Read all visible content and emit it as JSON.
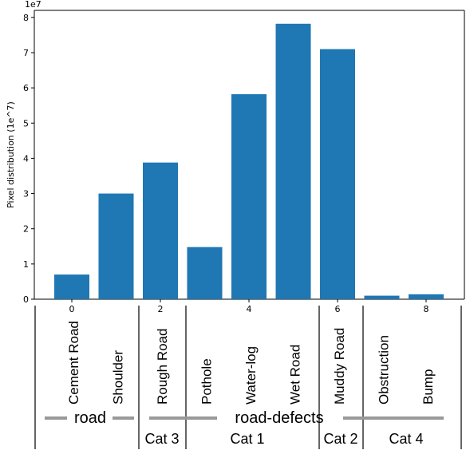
{
  "chart_data": {
    "type": "bar",
    "x": [
      0,
      1,
      2,
      3,
      4,
      5,
      6,
      7,
      8
    ],
    "values": [
      0.7,
      3.0,
      3.88,
      1.48,
      5.82,
      7.82,
      7.1,
      0.1,
      0.14
    ],
    "categories": [
      "Cement Road",
      "Shoulder",
      "Rough Road",
      "Pothole",
      "Water-log",
      "Wet Road",
      "Muddy Road",
      "Obstruction",
      "Bump"
    ],
    "xticks": [
      "0",
      "2",
      "4",
      "6",
      "8"
    ],
    "yticks": [
      "0",
      "1",
      "2",
      "3",
      "4",
      "5",
      "6",
      "7",
      "8"
    ],
    "ylim": [
      0,
      8.2
    ],
    "ylabel": "Pixel distribution (1e^7)",
    "offset_text": "1e7",
    "bar_color": "#1f77b4",
    "groups": [
      {
        "label": "road"
      },
      {
        "label": "road-defects"
      }
    ],
    "subgroups": [
      "Cat 3",
      "Cat 1",
      "Cat 2",
      "Cat 4"
    ]
  }
}
